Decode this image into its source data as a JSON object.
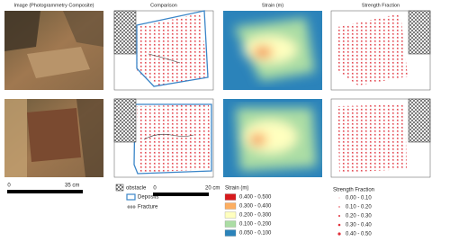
{
  "columns": [
    "Image (Photogrammetry Composite)",
    "Comparison",
    "Strain (m)",
    "Strength Fraction"
  ],
  "scale_bars": [
    {
      "start": "0",
      "end": "35 cm"
    },
    {
      "start": "0",
      "end": "20 cm"
    }
  ],
  "legend_comparison": [
    "obstacle",
    "Deposits",
    "Fracture"
  ],
  "legend_strain": {
    "title": "Strain (m)",
    "items": [
      "0.400 - 0.500",
      "0.300 - 0.400",
      "0.200 - 0.300",
      "0.100 - 0.200",
      "0.050 - 0.100"
    ]
  },
  "legend_strength": {
    "title": "Strength Fraction",
    "items": [
      "0.00 - 0.10",
      "0.10 - 0.20",
      "0.20 - 0.30",
      "0.30 - 0.40",
      "0.40 - 0.50"
    ]
  }
}
